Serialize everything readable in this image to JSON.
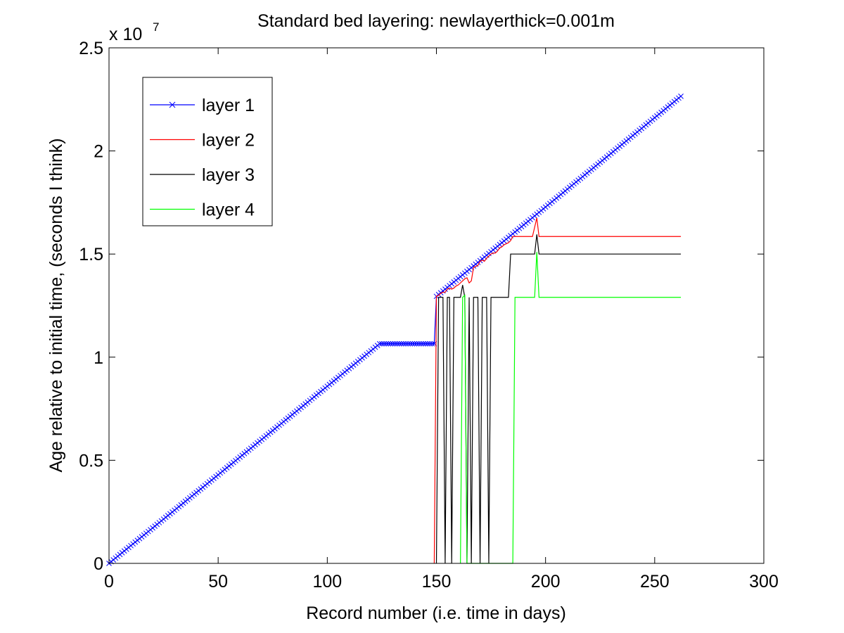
{
  "chart_data": {
    "type": "line",
    "title": "Standard bed layering: newlayerthick=0.001m",
    "xlabel": "Record number (i.e. time in days)",
    "ylabel": "Age relative to initial time, (seconds I think)",
    "xlim": [
      0,
      300
    ],
    "ylim": [
      0,
      25000000
    ],
    "xticks": [
      0,
      50,
      100,
      150,
      200,
      250,
      300
    ],
    "xtick_labels": [
      "0",
      "50",
      "100",
      "150",
      "200",
      "250",
      "300"
    ],
    "yticks": [
      0,
      5000000,
      10000000,
      15000000,
      20000000,
      25000000
    ],
    "ytick_labels": [
      "0",
      "0.5",
      "1",
      "1.5",
      "2",
      "2.5"
    ],
    "y_exponent": {
      "base": "x 10",
      "power": "7"
    },
    "grid": false,
    "legend_position": "top-left",
    "series": [
      {
        "name": "layer 1",
        "color": "#0000ff",
        "marker": "x",
        "x": [
          0,
          124,
          125,
          149,
          150,
          262
        ],
        "y": [
          0,
          10650000,
          10650000,
          10650000,
          12950000,
          22650000
        ]
      },
      {
        "name": "layer 2",
        "color": "#ff0000",
        "marker": "none",
        "x": [
          149,
          150,
          151,
          152,
          153,
          154,
          155,
          156,
          157,
          158,
          159,
          160,
          161,
          162,
          163,
          164,
          165,
          166,
          167,
          168,
          169,
          170,
          171,
          172,
          173,
          174,
          175,
          176,
          177,
          178,
          179,
          180,
          181,
          182,
          183,
          184,
          185,
          186,
          187,
          188,
          189,
          190,
          191,
          192,
          193,
          194,
          195,
          196,
          197,
          262
        ],
        "y": [
          0,
          12950000,
          13000000,
          13100000,
          13150000,
          13150000,
          13300000,
          13350000,
          13300000,
          13350000,
          13450000,
          13500000,
          13600000,
          13700000,
          13800000,
          13850000,
          13600000,
          13700000,
          14350000,
          14400000,
          14450000,
          14650000,
          14700000,
          14650000,
          14800000,
          14900000,
          15000000,
          15050000,
          15050000,
          15150000,
          15300000,
          15350000,
          15450000,
          15500000,
          15550000,
          15650000,
          15850000,
          15850000,
          15850000,
          15850000,
          15850000,
          15850000,
          15850000,
          15850000,
          15850000,
          15850000,
          16300000,
          16750000,
          15850000,
          15850000
        ]
      },
      {
        "name": "layer 3",
        "color": "#000000",
        "marker": "none",
        "x": [
          150,
          151,
          152,
          153,
          154,
          155,
          156,
          157,
          158,
          159,
          160,
          161,
          162,
          163,
          164,
          165,
          166,
          167,
          168,
          169,
          170,
          171,
          172,
          173,
          174,
          175,
          183,
          184,
          185,
          195,
          196,
          197,
          262
        ],
        "y": [
          0,
          12900000,
          12900000,
          12900000,
          0,
          12900000,
          12900000,
          0,
          12900000,
          12900000,
          12900000,
          12900000,
          13500000,
          12900000,
          0,
          12900000,
          0,
          12900000,
          12900000,
          12900000,
          0,
          12900000,
          12900000,
          12900000,
          0,
          12900000,
          12900000,
          15000000,
          15000000,
          15000000,
          15950000,
          15000000,
          15000000
        ]
      },
      {
        "name": "layer 4",
        "color": "#00ff00",
        "marker": "none",
        "x": [
          161,
          162,
          163,
          164,
          185,
          186,
          195,
          196,
          197,
          262
        ],
        "y": [
          0,
          12900000,
          13000000,
          0,
          0,
          12900000,
          12900000,
          15100000,
          12900000,
          12900000
        ]
      }
    ]
  }
}
